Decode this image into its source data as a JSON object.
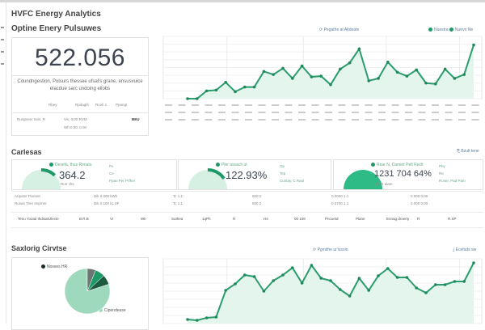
{
  "header": {
    "title": "HVFC Energy Analytics",
    "subtitle": "Optine Enery Pulsuwes"
  },
  "kpi": {
    "value": "522.056",
    "description": "Coundngestion, Pulsurs thessee ufsal's grane, ensusvuice elacdue sarc undoing ellobs",
    "meta": [
      "Rbey",
      "Rpdagth",
      "Rceh 1",
      "Ppangt"
    ],
    "footer_label": "Rusgener Svis, R",
    "footer_values": [
      "Vis. 0.00 RVM",
      "Wh 0.00. 0.00"
    ],
    "footer_badge": "BEU"
  },
  "top_chart": {
    "legend_center": "Pegathe at Altdeate",
    "legend_items": [
      "Nuestra",
      "Nuevo Ne"
    ]
  },
  "section2": {
    "title": "Carlesas",
    "link": "Bzult tene"
  },
  "gauges": [
    {
      "label": "Desefa, thus Renatu",
      "value": "364.2",
      "sub": "Rurr zlts",
      "fill": 0.35,
      "items": [
        "Pv",
        "Ce",
        "Ppan Per Prfher"
      ]
    },
    {
      "label": "Pler assach ut",
      "value": "122.93%",
      "sub": "",
      "fill": 0.45,
      "items": [
        "Op",
        "Tep",
        "Cuntay, C Raul"
      ]
    },
    {
      "label": "Rear N, Cameir Pelt Rezlt",
      "value": "1231 704 64%",
      "sub": "Manfr aiam",
      "fill": 1.0,
      "items": [
        "Phy",
        "Re",
        "Roser, Pad Pam"
      ]
    }
  ],
  "table": {
    "rows": [
      [
        "Arquitsr Flunnet",
        "Dik 0.000 kWh",
        "Tc 1.1",
        "500 2",
        "0.0000 1.1",
        "0.000 0.00"
      ],
      [
        "Rusas Ther Impmer",
        "Dik 0.100 kL 0F",
        "Tc 1.1",
        "500 2",
        "0.0700 1.1",
        "0.000 0.00"
      ]
    ],
    "summary": [
      "Tenu Youtal Ihdisat",
      "Ulecte",
      "B.R.B",
      "Vr",
      "Wk",
      "Suthea",
      "1qPh",
      "R",
      "H4",
      "00 108",
      "Pncuetd",
      "Plane",
      "Ennag droerty",
      "R",
      "R.SP"
    ]
  },
  "section3": {
    "title": "Saxlorig Cirvtse",
    "chart_legend_center": "Pgmithe ur'issoin",
    "chart_link": "Ecefuds we"
  },
  "pie": {
    "legend": [
      "Nosses HR",
      "Cipendeuse"
    ],
    "colors": [
      "#1e5c40",
      "#1e9a68",
      "#5f6b66",
      "#9ed9bd"
    ]
  },
  "colors": {
    "accent": "#1e9a68",
    "fill": "#cdeedd",
    "text": "#3c4450"
  },
  "chart_data": [
    {
      "type": "line",
      "series": [
        {
          "values": [
            0,
            0,
            1,
            1.1,
            2.1,
            0.9,
            1.5,
            1.5,
            3.5,
            3.1,
            3.9,
            2.6,
            4.2,
            2.8,
            2.9,
            1.8,
            3.8,
            4.6,
            6.4,
            2.3,
            2.6,
            4.7,
            3.4,
            2.9,
            3.7,
            2,
            1.9,
            3.8,
            2.6,
            3.1,
            6.9
          ]
        }
      ],
      "ylim": [
        0,
        8
      ],
      "grid": true,
      "legend": "top-right"
    },
    {
      "type": "line",
      "series": [
        {
          "values": [
            0.5,
            0.4,
            0.7,
            0.8,
            4.1,
            4.9,
            6,
            5.8,
            4,
            5.3,
            6,
            6.9,
            5,
            7.2,
            5.6,
            5.3,
            4.2,
            3.4,
            5.6,
            4.1,
            5.9,
            6.8,
            5.7,
            5.7,
            4.4,
            3.8,
            4.8,
            4.8,
            5.2,
            5.2,
            7.5
          ]
        }
      ],
      "ylim": [
        0,
        8
      ],
      "grid": true,
      "legend": "top-right"
    },
    {
      "type": "pie",
      "values": [
        80,
        7,
        7,
        6
      ],
      "legend": "top-left"
    }
  ]
}
